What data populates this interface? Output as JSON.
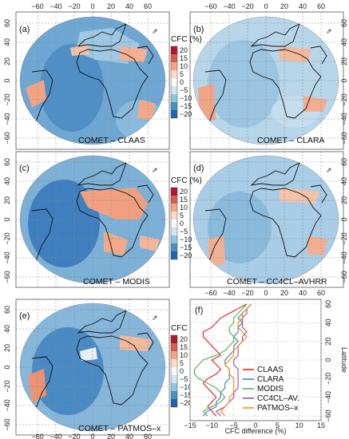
{
  "panels": [
    {
      "id": "a",
      "letter": "(a)",
      "title": "COMET – CLAAS",
      "colorbar": true
    },
    {
      "id": "b",
      "letter": "(b)",
      "title": "COMET – CLARA",
      "colorbar": false
    },
    {
      "id": "c",
      "letter": "(c)",
      "title": "COMET – MODIS",
      "colorbar": true
    },
    {
      "id": "d",
      "letter": "(d)",
      "title": "COMET – CC4CL–AVHRR",
      "colorbar": false
    },
    {
      "id": "e",
      "letter": "(e)",
      "title": "COMET – PATMOS–x",
      "colorbar": true
    }
  ],
  "map_axes": {
    "lon_ticks": [
      "−60",
      "−40",
      "−20",
      "0",
      "20",
      "40",
      "60"
    ],
    "lat_ticks": [
      "60",
      "40",
      "20",
      "0",
      "−20",
      "−40",
      "−60"
    ]
  },
  "colorbar": {
    "title": "CFC (%)",
    "ticks": [
      "20",
      "15",
      "10",
      "5",
      "0",
      "−5",
      "−10",
      "−15",
      "−20"
    ],
    "colors": [
      "#b2182b",
      "#d6604d",
      "#f4a582",
      "#fddbc7",
      "#f7f7f7",
      "#d1e5f0",
      "#92c5de",
      "#4393c3",
      "#2166ac"
    ]
  },
  "profile_panel": {
    "letter": "(f)",
    "xlabel": "CFC difference (%)",
    "ylabel": "Latitude"
  },
  "chart_data": {
    "type": "line",
    "xlabel": "CFC difference (%)",
    "ylabel": "Latitude",
    "xlim": [
      -15,
      15
    ],
    "ylim": [
      -65,
      65
    ],
    "xticks": [
      "−15",
      "−10",
      "−5",
      "0",
      "5",
      "10",
      "15"
    ],
    "yticks": [
      "60",
      "40",
      "20",
      "0",
      "−20",
      "−40",
      "−60"
    ],
    "latitudes": [
      -60,
      -55,
      -50,
      -45,
      -40,
      -35,
      -30,
      -25,
      -20,
      -15,
      -10,
      -5,
      0,
      5,
      10,
      15,
      20,
      25,
      30,
      35,
      40,
      45,
      50,
      55,
      60
    ],
    "series": [
      {
        "name": "CLAAS",
        "color": "#e41a1c",
        "values": [
          -9,
          -10,
          -11,
          -10,
          -9,
          -10,
          -11,
          -12,
          -11,
          -9,
          -8,
          -9,
          -10,
          -8,
          -9,
          -10,
          -11,
          -12,
          -12,
          -10,
          -9,
          -8,
          -6,
          -4,
          -2
        ]
      },
      {
        "name": "CLARA",
        "color": "#377eb8",
        "values": [
          -12,
          -11,
          -9,
          -9,
          -8,
          -8,
          -7,
          -7,
          -6,
          -6,
          -6,
          -7,
          -7,
          -6,
          -5,
          -5,
          -4,
          -5,
          -4,
          -4,
          -3,
          -4,
          -3,
          -2,
          -1
        ]
      },
      {
        "name": "MODIS",
        "color": "#4daf4a",
        "values": [
          -11,
          -12,
          -10,
          -8,
          -7,
          -8,
          -9,
          -11,
          -13,
          -14,
          -14,
          -13,
          -12,
          -9,
          -7,
          -6,
          -5,
          -5,
          -6,
          -6,
          -5,
          -5,
          -4,
          -3,
          -2
        ]
      },
      {
        "name": "CC4CL–AV.",
        "color": "#984ea3",
        "values": [
          -8,
          -9,
          -7,
          -6,
          -5,
          -5,
          -4,
          -4,
          -4,
          -4,
          -4,
          -5,
          -5,
          -4,
          -4,
          -4,
          -3,
          -3,
          -2,
          -3,
          -3,
          -3,
          -2,
          -2,
          -1
        ]
      },
      {
        "name": "PATMOS–x",
        "color": "#ff7f00",
        "values": [
          -7,
          -8,
          -7,
          -6,
          -6,
          -5,
          -5,
          -5,
          -5,
          -6,
          -6,
          -7,
          -6,
          -5,
          -5,
          -4,
          -3,
          -2,
          -3,
          -4,
          -4,
          -3,
          -3,
          -2,
          -1
        ]
      }
    ]
  }
}
